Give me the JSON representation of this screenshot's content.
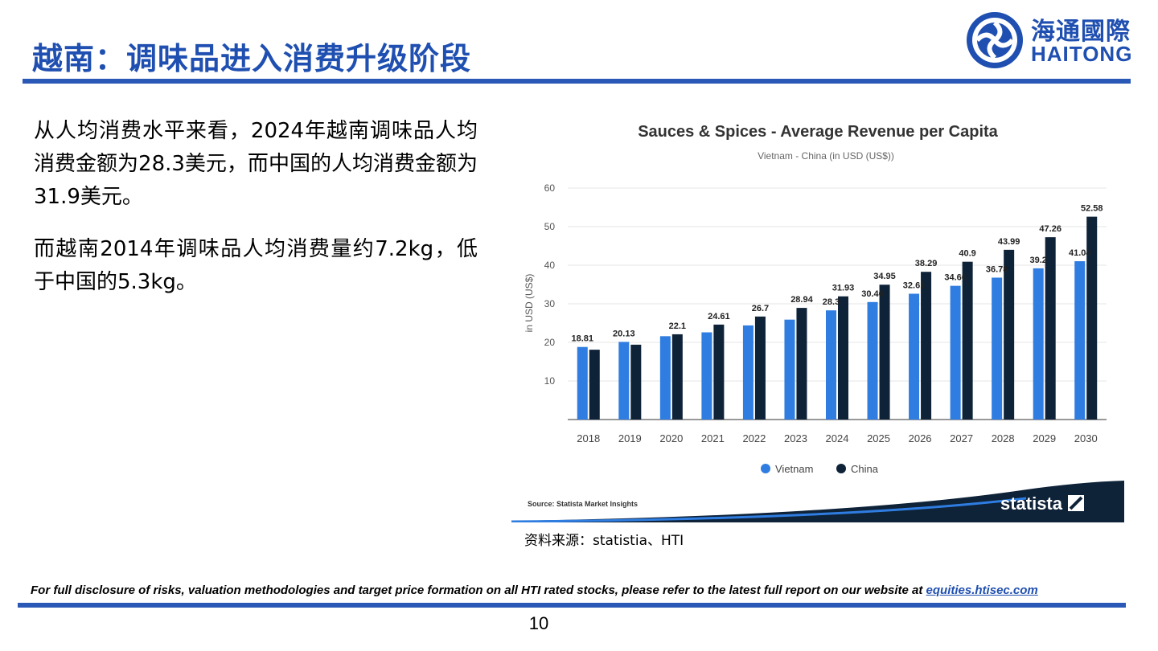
{
  "slide": {
    "title": "越南：调味品进入消费升级阶段",
    "logo": {
      "cn": "海通國際",
      "en": "HAITONG"
    },
    "paragraphs": [
      "从人均消费水平来看，2024年越南调味品人均消费金额为28.3美元，而中国的人均消费金额为31.9美元。",
      "而越南2014年调味品人均消费量约7.2kg，低于中国的5.3kg。"
    ],
    "source_note": "资料来源：statistia、HTI",
    "disclaimer": {
      "text": "For full disclosure of risks, valuation methodologies and target price formation on all HTI rated stocks, please refer to the latest full report on our website at ",
      "link": "equities.htisec.com"
    },
    "page_number": "10"
  },
  "chart_data": {
    "type": "bar",
    "title": "Sauces & Spices - Average Revenue per Capita",
    "subtitle": "Vietnam - China (in USD (US$))",
    "xlabel": "",
    "ylabel": "in USD (US$)",
    "ylim": [
      0,
      60
    ],
    "yticks": [
      10,
      20,
      30,
      40,
      50,
      60
    ],
    "grid": true,
    "legend": "bottom-center",
    "categories": [
      "2018",
      "2019",
      "2020",
      "2021",
      "2022",
      "2023",
      "2024",
      "2025",
      "2026",
      "2027",
      "2028",
      "2029",
      "2030"
    ],
    "series": [
      {
        "name": "Vietnam",
        "color": "#2f7de1",
        "values": [
          18.81,
          20.13,
          21.6,
          22.6,
          24.4,
          25.9,
          28.3,
          30.46,
          32.61,
          34.66,
          36.78,
          39.2,
          41.04
        ],
        "labels": [
          "18.81",
          "20.13",
          "",
          "",
          "",
          "",
          "28.3",
          "30.46",
          "32.61",
          "34.66",
          "36.78",
          "39.2",
          "41.04"
        ]
      },
      {
        "name": "China",
        "color": "#0e2238",
        "values": [
          18.1,
          19.4,
          22.1,
          24.61,
          26.7,
          28.94,
          31.93,
          34.95,
          38.29,
          40.9,
          43.99,
          47.26,
          52.58
        ],
        "labels": [
          "",
          "",
          "22.1",
          "24.61",
          "26.7",
          "28.94",
          "31.93",
          "34.95",
          "38.29",
          "40.9",
          "43.99",
          "47.26",
          "52.58"
        ]
      }
    ],
    "source": "Source: Statista Market Insights",
    "brand": "statista"
  }
}
